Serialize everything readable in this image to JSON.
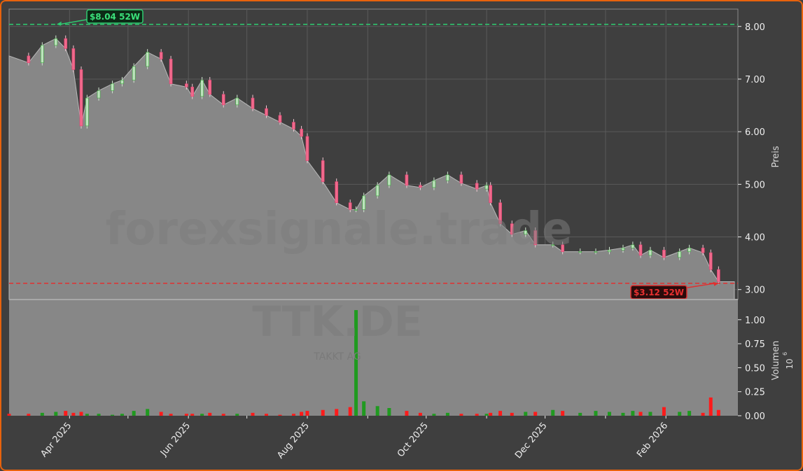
{
  "chart_data": [
    {
      "type": "candlestick-area",
      "ticker_watermark": "TTK.DE",
      "company_watermark": "TAKKT AG",
      "site_watermark": "forexsignale.trade",
      "ylabel": "Preis",
      "ylim": [
        2.81,
        8.33
      ],
      "yticks": [
        "3.00",
        "4.00",
        "5.00",
        "6.00",
        "7.00",
        "8.00"
      ],
      "grid": true,
      "high_52w": {
        "value": 8.04,
        "label": "$8.04 52W",
        "date": "2025-03-25",
        "color": "#2ecc71"
      },
      "low_52w": {
        "value": 3.12,
        "label": "$3.12 52W",
        "date": "2026-02-28",
        "color": "#e03030"
      },
      "series": [
        [
          "2025-03-01",
          7.44
        ],
        [
          "2025-03-11",
          7.31
        ],
        [
          "2025-03-18",
          7.64
        ],
        [
          "2025-03-25",
          7.77
        ],
        [
          "2025-03-30",
          7.58
        ],
        [
          "2025-04-03",
          7.18
        ],
        [
          "2025-04-07",
          6.11
        ],
        [
          "2025-04-10",
          6.64
        ],
        [
          "2025-04-16",
          6.78
        ],
        [
          "2025-04-23",
          6.91
        ],
        [
          "2025-04-28",
          6.98
        ],
        [
          "2025-05-04",
          7.24
        ],
        [
          "2025-05-11",
          7.51
        ],
        [
          "2025-05-18",
          7.38
        ],
        [
          "2025-05-23",
          6.91
        ],
        [
          "2025-05-31",
          6.85
        ],
        [
          "2025-06-03",
          6.67
        ],
        [
          "2025-06-08",
          6.98
        ],
        [
          "2025-06-12",
          6.71
        ],
        [
          "2025-06-19",
          6.51
        ],
        [
          "2025-06-26",
          6.64
        ],
        [
          "2025-07-04",
          6.44
        ],
        [
          "2025-07-11",
          6.31
        ],
        [
          "2025-07-18",
          6.18
        ],
        [
          "2025-07-25",
          6.05
        ],
        [
          "2025-07-29",
          5.91
        ],
        [
          "2025-08-01",
          5.45
        ],
        [
          "2025-08-09",
          5.05
        ],
        [
          "2025-08-16",
          4.65
        ],
        [
          "2025-08-23",
          4.52
        ],
        [
          "2025-08-26",
          4.52
        ],
        [
          "2025-08-30",
          4.78
        ],
        [
          "2025-09-06",
          4.98
        ],
        [
          "2025-09-12",
          5.18
        ],
        [
          "2025-09-21",
          4.98
        ],
        [
          "2025-09-28",
          4.94
        ],
        [
          "2025-10-05",
          5.07
        ],
        [
          "2025-10-12",
          5.18
        ],
        [
          "2025-10-19",
          5.02
        ],
        [
          "2025-10-27",
          4.91
        ],
        [
          "2025-11-01",
          4.98
        ],
        [
          "2025-11-03",
          4.65
        ],
        [
          "2025-11-08",
          4.25
        ],
        [
          "2025-11-14",
          4.05
        ],
        [
          "2025-11-21",
          4.12
        ],
        [
          "2025-11-26",
          3.85
        ],
        [
          "2025-12-05",
          3.85
        ],
        [
          "2025-12-10",
          3.72
        ],
        [
          "2025-12-19",
          3.72
        ],
        [
          "2025-12-27",
          3.72
        ],
        [
          "2026-01-03",
          3.75
        ],
        [
          "2026-01-10",
          3.79
        ],
        [
          "2026-01-15",
          3.85
        ],
        [
          "2026-01-19",
          3.65
        ],
        [
          "2026-01-24",
          3.75
        ],
        [
          "2026-01-31",
          3.61
        ],
        [
          "2026-02-08",
          3.72
        ],
        [
          "2026-02-13",
          3.79
        ],
        [
          "2026-02-20",
          3.7
        ],
        [
          "2026-02-24",
          3.38
        ],
        [
          "2026-02-28",
          3.15
        ]
      ]
    },
    {
      "type": "bar",
      "ylabel": "Volumen",
      "yunit": "10",
      "yunit_exp": "6",
      "ylim": [
        0,
        1.21
      ],
      "yticks": [
        "0.00",
        "0.25",
        "0.50",
        "0.75",
        "1.00"
      ],
      "up_color": "#1f9a1f",
      "down_color": "#ff1a1a",
      "values": [
        0.02,
        0.02,
        0.03,
        0.04,
        0.05,
        0.03,
        0.04,
        0.02,
        0.02,
        0.01,
        0.02,
        0.05,
        0.07,
        0.04,
        0.02,
        0.02,
        0.02,
        0.02,
        0.03,
        0.02,
        0.02,
        0.03,
        0.02,
        0.01,
        0.02,
        0.04,
        0.05,
        0.06,
        0.07,
        0.09,
        1.1,
        0.15,
        0.1,
        0.08,
        0.05,
        0.03,
        0.02,
        0.03,
        0.02,
        0.02,
        0.02,
        0.03,
        0.05,
        0.03,
        0.04,
        0.04,
        0.06,
        0.05,
        0.03,
        0.05,
        0.04,
        0.03,
        0.05,
        0.04,
        0.04,
        0.09,
        0.04,
        0.05,
        0.03,
        0.19,
        0.06
      ]
    }
  ],
  "xaxis": {
    "ticks": [
      "2025-04-01",
      "2025-05-01",
      "2025-06-01",
      "2025-07-01",
      "2025-08-01",
      "2025-09-01",
      "2025-10-01",
      "2025-11-01",
      "2025-12-01",
      "2026-01-01",
      "2026-02-01"
    ],
    "labels": [
      {
        "date": "2025-04-01",
        "text": "Apr 2025"
      },
      {
        "date": "2025-06-01",
        "text": "Jun 2025"
      },
      {
        "date": "2025-08-01",
        "text": "Aug 2025"
      },
      {
        "date": "2025-10-01",
        "text": "Oct 2025"
      },
      {
        "date": "2025-12-01",
        "text": "Dec 2025"
      },
      {
        "date": "2026-02-01",
        "text": "Feb 2026"
      }
    ]
  }
}
